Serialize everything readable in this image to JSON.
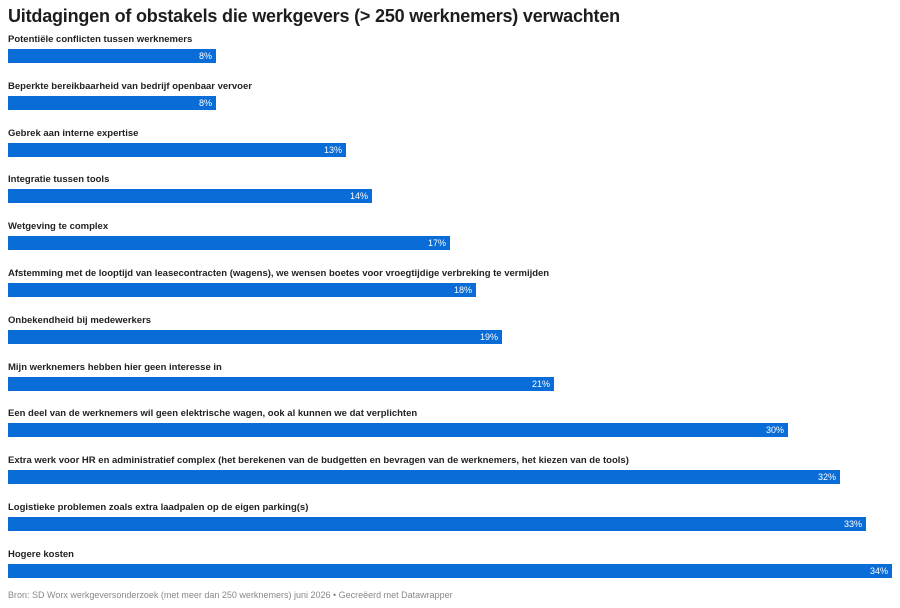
{
  "title": "Uitdagingen of obstakels die werkgevers (> 250 werknemers) verwachten",
  "footer": "Bron: SD Worx werkgeversonderzoek (met meer dan 250 werknemers) juni 2026 • Gecreëerd met Datawrapper",
  "bar_color": "#0a6cd6",
  "chart_data": {
    "type": "bar",
    "orientation": "horizontal",
    "value_suffix": "%",
    "xlim": [
      0,
      34
    ],
    "categories": [
      "Potentiële conflicten tussen werknemers",
      "Beperkte bereikbaarheid van bedrijf openbaar vervoer",
      "Gebrek aan interne expertise",
      "Integratie tussen tools",
      "Wetgeving te complex",
      "Afstemming met de looptijd van leasecontracten (wagens), we wensen boetes voor vroegtijdige verbreking te vermijden",
      "Onbekendheid bij medewerkers",
      "Mijn werknemers hebben hier geen interesse in",
      "Een deel van de werknemers wil geen elektrische wagen, ook al kunnen we dat verplichten",
      "Extra werk voor HR en administratief complex (het berekenen van de budgetten en bevragen van de werknemers, het kiezen van de tools)",
      "Logistieke problemen zoals extra laadpalen op de eigen parking(s)",
      "Hogere kosten"
    ],
    "values": [
      8,
      8,
      13,
      14,
      17,
      18,
      19,
      21,
      30,
      32,
      33,
      34
    ]
  }
}
